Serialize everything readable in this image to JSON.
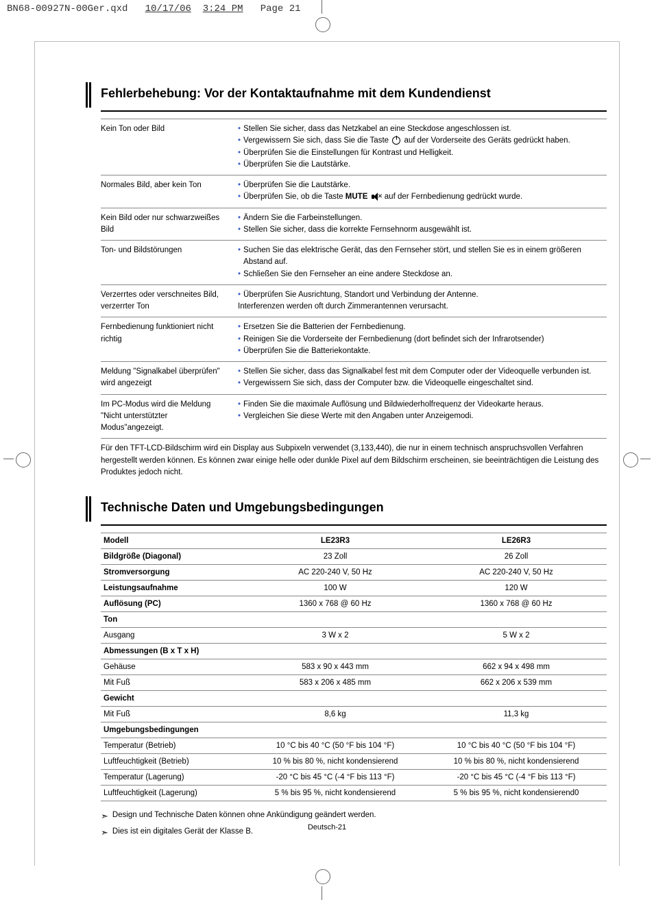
{
  "print_header": {
    "filename": "BN68-00927N-00Ger.qxd",
    "date": "10/17/06",
    "time": "3:24 PM",
    "page_word": "Page",
    "page_num": "21"
  },
  "section1": {
    "title": "Fehlerbehebung: Vor der Kontaktaufnahme mit dem Kundendienst",
    "rows": [
      {
        "problem": "Kein Ton oder Bild",
        "solutions": [
          {
            "pre": "Stellen Sie sicher, dass das Netzkabel an eine Steckdose angeschlossen ist."
          },
          {
            "pre": "Vergewissern Sie sich, dass Sie die Taste ",
            "icon": "power",
            "post": " auf der Vorderseite des Geräts gedrückt haben."
          },
          {
            "pre": "Überprüfen Sie die Einstellungen für Kontrast und Helligkeit."
          },
          {
            "pre": "Überprüfen Sie die Lautstärke."
          }
        ]
      },
      {
        "problem": "Normales Bild, aber kein Ton",
        "solutions": [
          {
            "pre": "Überprüfen Sie die Lautstärke."
          },
          {
            "pre": "Überprüfen Sie, ob die Taste ",
            "bold": "MUTE",
            "icon": "mute",
            "post": " auf der Fernbedienung gedrückt wurde."
          }
        ]
      },
      {
        "problem": "Kein Bild oder nur schwarzweißes Bild",
        "solutions": [
          {
            "pre": "Ändern Sie die Farbeinstellungen."
          },
          {
            "pre": "Stellen Sie sicher, dass die korrekte Fernsehnorm ausgewählt ist."
          }
        ]
      },
      {
        "problem": "Ton- und Bildstörungen",
        "solutions": [
          {
            "pre": "Suchen Sie das elektrische Gerät, das den Fernseher stört, und stellen Sie es in einem größeren Abstand auf."
          },
          {
            "pre": "Schließen Sie den Fernseher an eine andere Steckdose an."
          }
        ]
      },
      {
        "problem": "Verzerrtes oder verschneites Bild, verzerrter Ton",
        "solutions": [
          {
            "pre": "Überprüfen Sie Ausrichtung, Standort und Verbindung der Antenne."
          },
          {
            "plain": "Interferenzen werden oft durch Zimmerantennen verursacht."
          }
        ]
      },
      {
        "problem": "Fernbedienung funktioniert nicht richtig",
        "solutions": [
          {
            "pre": "Ersetzen Sie die Batterien der Fernbedienung."
          },
          {
            "pre": "Reinigen Sie die Vorderseite der Fernbedienung (dort befindet sich der Infrarotsender)"
          },
          {
            "pre": "Überprüfen Sie die Batteriekontakte."
          }
        ]
      },
      {
        "problem": "Meldung \"Signalkabel überprüfen\" wird angezeigt",
        "solutions": [
          {
            "pre": "Stellen Sie sicher, dass das Signalkabel fest mit dem Computer oder der Videoquelle verbunden ist."
          },
          {
            "pre": "Vergewissern Sie sich, dass der Computer bzw. die Videoquelle eingeschaltet sind."
          }
        ]
      },
      {
        "problem": "Im PC-Modus wird die Meldung \"Nicht unterstützter Modus\"angezeigt.",
        "solutions": [
          {
            "pre": "Finden Sie die maximale Auflösung und Bildwiederholfrequenz der Videokarte heraus."
          },
          {
            "pre": "Vergleichen Sie diese Werte mit den Angaben unter Anzeigemodi."
          }
        ]
      }
    ],
    "footnote": "Für den TFT-LCD-Bildschirm wird ein Display aus Subpixeln verwendet (3,133,440), die nur in einem technisch anspruchsvollen Verfahren hergestellt werden können. Es können zwar einige helle oder dunkle Pixel auf dem Bildschirm erscheinen, sie beeinträchtigen die Leistung des Produktes jedoch nicht."
  },
  "section2": {
    "title": "Technische Daten und Umgebungsbedingungen",
    "header": {
      "c1": "Modell",
      "c2": "LE23R3",
      "c3": "LE26R3"
    },
    "rows": [
      {
        "label": "Bildgröße (Diagonal)",
        "bold": true,
        "c2": "23 Zoll",
        "c3": "26 Zoll"
      },
      {
        "label": "Stromversorgung",
        "bold": true,
        "c2": "AC 220-240 V, 50 Hz",
        "c3": "AC 220-240 V, 50 Hz"
      },
      {
        "label": "Leistungsaufnahme",
        "bold": true,
        "c2": "100 W",
        "c3": "120 W"
      },
      {
        "label": "Auflösung (PC)",
        "bold": true,
        "c2": "1360 x 768 @ 60 Hz",
        "c3": "1360 x 768 @ 60 Hz"
      },
      {
        "label": "Ton",
        "bold": true,
        "c2": "",
        "c3": ""
      },
      {
        "label": "Ausgang",
        "bold": false,
        "c2": "3 W x 2",
        "c3": "5 W x 2"
      },
      {
        "label": "Abmessungen (B x T x H)",
        "bold": true,
        "c2": "",
        "c3": ""
      },
      {
        "label": "Gehäuse",
        "bold": false,
        "c2": "583 x 90 x 443 mm",
        "c3": "662 x 94 x 498 mm"
      },
      {
        "label": "Mit Fuß",
        "bold": false,
        "c2": "583 x 206 x 485 mm",
        "c3": "662 x 206 x 539 mm"
      },
      {
        "label": "Gewicht",
        "bold": true,
        "c2": "",
        "c3": ""
      },
      {
        "label": "Mit Fuß",
        "bold": false,
        "c2": "8,6 kg",
        "c3": "11,3 kg"
      },
      {
        "label": "Umgebungsbedingungen",
        "bold": true,
        "c2": "",
        "c3": ""
      },
      {
        "label": "Temperatur (Betrieb)",
        "bold": false,
        "c2": "10 °C bis 40 °C (50 °F bis 104 °F)",
        "c3": "10 °C bis 40 °C (50 °F bis 104 °F)"
      },
      {
        "label": "Luftfeuchtigkeit (Betrieb)",
        "bold": false,
        "c2": "10 % bis 80 %, nicht kondensierend",
        "c3": "10 % bis 80 %, nicht kondensierend"
      },
      {
        "label": "Temperatur (Lagerung)",
        "bold": false,
        "c2": "-20 °C bis 45 °C (-4 °F bis 113 °F)",
        "c3": "-20 °C bis 45 °C (-4 °F bis 113 °F)"
      },
      {
        "label": "Luftfeuchtigkeit (Lagerung)",
        "bold": false,
        "c2": "5 % bis 95 %, nicht kondensierend",
        "c3": "5 % bis 95 %, nicht kondensierend0"
      }
    ]
  },
  "notes": [
    "Design und Technische Daten können ohne Ankündigung geändert werden.",
    "Dies ist ein digitales Gerät der Klasse B."
  ],
  "footer": "Deutsch-21",
  "colors": {
    "bullet": "#3b5fc4",
    "border": "#888888",
    "text": "#000000"
  }
}
